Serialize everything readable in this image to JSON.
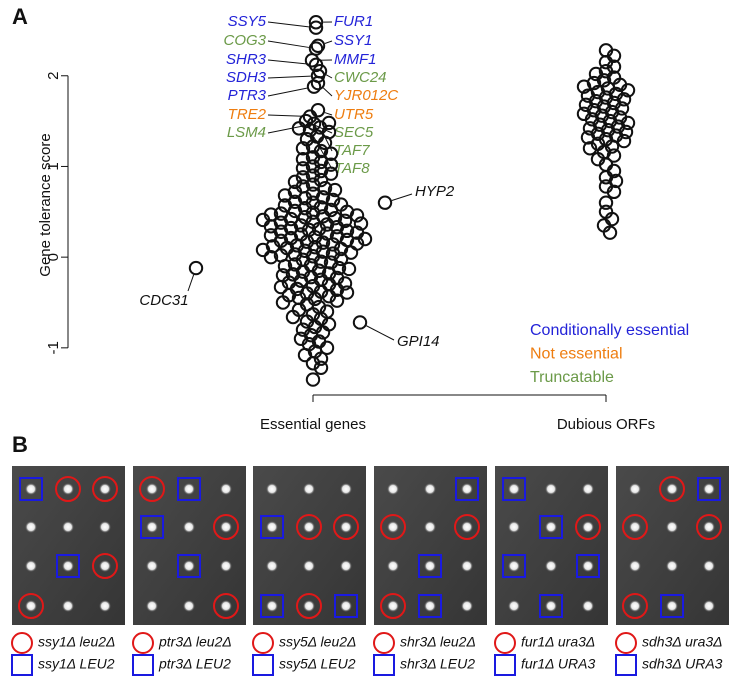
{
  "chart_data": {
    "type": "beeswarm",
    "panel_label": "A",
    "y_label": "Gene tolerance score",
    "categories": [
      "Essential genes",
      "Dubious ORFs"
    ],
    "values": [
      [
        1.48,
        1.42,
        1.38,
        1.33,
        1.3,
        1.26,
        1.22,
        1.2,
        1.17,
        1.14,
        1.1,
        1.08,
        1.05,
        1.02,
        1.0,
        0.98,
        0.95,
        0.92,
        0.9,
        0.88,
        0.85,
        0.83,
        0.8,
        0.78,
        0.76,
        0.74,
        0.72,
        0.7,
        0.68,
        0.66,
        0.65,
        0.63,
        0.61,
        0.6,
        0.58,
        0.57,
        0.55,
        0.54,
        0.52,
        0.51,
        0.5,
        0.49,
        0.48,
        0.47,
        0.46,
        0.45,
        0.44,
        0.43,
        0.42,
        0.41,
        0.4,
        0.39,
        0.38,
        0.37,
        0.36,
        0.35,
        0.34,
        0.33,
        0.32,
        0.31,
        0.3,
        0.29,
        0.28,
        0.27,
        0.26,
        0.25,
        0.24,
        0.23,
        0.22,
        0.21,
        0.2,
        0.19,
        0.18,
        0.17,
        0.16,
        0.15,
        0.14,
        0.13,
        0.12,
        0.11,
        0.1,
        0.09,
        0.08,
        0.07,
        0.06,
        0.05,
        0.04,
        0.03,
        0.02,
        0.01,
        0.0,
        -0.02,
        -0.03,
        -0.05,
        -0.06,
        -0.08,
        -0.09,
        -0.1,
        -0.12,
        -0.13,
        -0.15,
        -0.16,
        -0.18,
        -0.19,
        -0.2,
        -0.22,
        -0.23,
        -0.25,
        -0.26,
        -0.28,
        -0.29,
        -0.3,
        -0.32,
        -0.33,
        -0.35,
        -0.36,
        -0.38,
        -0.39,
        -0.4,
        -0.42,
        -0.43,
        -0.45,
        -0.46,
        -0.48,
        -0.5,
        -0.52,
        -0.55,
        -0.58,
        -0.6,
        -0.63,
        -0.66,
        -0.68,
        -0.71,
        -0.74,
        -0.77,
        -0.8,
        -0.83,
        -0.86,
        -0.9,
        -0.93,
        -0.96,
        -1.0,
        -1.04,
        -1.08,
        -1.12,
        -1.17,
        -1.22,
        -1.35
      ],
      [
        2.28,
        2.22,
        2.15,
        2.1,
        2.05,
        2.02,
        1.98,
        1.95,
        1.92,
        1.9,
        1.88,
        1.86,
        1.84,
        1.82,
        1.8,
        1.78,
        1.76,
        1.74,
        1.72,
        1.7,
        1.68,
        1.66,
        1.64,
        1.62,
        1.6,
        1.58,
        1.56,
        1.54,
        1.52,
        1.5,
        1.48,
        1.46,
        1.44,
        1.42,
        1.4,
        1.38,
        1.36,
        1.34,
        1.32,
        1.3,
        1.28,
        1.25,
        1.22,
        1.2,
        1.16,
        1.12,
        1.08,
        1.02,
        0.95,
        0.88,
        0.84,
        0.78,
        0.72,
        0.6,
        0.5,
        0.42,
        0.35,
        0.27
      ]
    ],
    "ylim": [
      -1.52,
      2.67
    ],
    "yticks": [
      -1,
      0,
      1,
      2
    ],
    "annotations": [
      {
        "label": "SSY5",
        "color": "#2323d8",
        "value": 2.53
      },
      {
        "label": "COG3",
        "color": "#6b9a48",
        "value": 2.3
      },
      {
        "label": "SHR3",
        "color": "#2323d8",
        "value": 2.12
      },
      {
        "label": "SDH3",
        "color": "#2323d8",
        "value": 2.0
      },
      {
        "label": "PTR3",
        "color": "#2323d8",
        "value": 1.88
      },
      {
        "label": "TRE2",
        "color": "#ee7d10",
        "value": 1.55
      },
      {
        "label": "LSM4",
        "color": "#6b9a48",
        "value": 1.47
      },
      {
        "label": "FUR1",
        "color": "#2323d8",
        "value": 2.59
      },
      {
        "label": "SSY1",
        "color": "#2323d8",
        "value": 2.33
      },
      {
        "label": "MMF1",
        "color": "#2323d8",
        "value": 2.17
      },
      {
        "label": "CWC24",
        "color": "#6b9a48",
        "value": 2.05
      },
      {
        "label": "YJR012C",
        "color": "#ee7d10",
        "value": 1.92
      },
      {
        "label": "UTR5",
        "color": "#ee7d10",
        "value": 1.62
      },
      {
        "label": "SEC5",
        "color": "#6b9a48",
        "value": 1.5
      },
      {
        "label": "TAF7",
        "color": "#6b9a48",
        "value": 1.43
      },
      {
        "label": "TAF8",
        "color": "#6b9a48",
        "value": 1.4
      },
      {
        "label": "HYP2",
        "color": "#111111",
        "value": 0.6
      },
      {
        "label": "CDC31",
        "color": "#111111",
        "value": -0.12
      },
      {
        "label": "GPI14",
        "color": "#111111",
        "value": -0.72
      }
    ],
    "legend": [
      {
        "name": "Conditionally essential",
        "color": "#2323d8"
      },
      {
        "name": "Not essential",
        "color": "#ee7d10"
      },
      {
        "name": "Truncatable",
        "color": "#6b9a48"
      }
    ]
  },
  "panel_b": {
    "panel_label": "B",
    "plates": [
      {
        "circle_label": "ssy1Δ leu2Δ",
        "square_label": "ssy1Δ LEU2"
      },
      {
        "circle_label": "ptr3Δ leu2Δ",
        "square_label": "ptr3Δ LEU2"
      },
      {
        "circle_label": "ssy5Δ leu2Δ",
        "square_label": "ssy5Δ LEU2"
      },
      {
        "circle_label": "shr3Δ leu2Δ",
        "square_label": "shr3Δ LEU2"
      },
      {
        "circle_label": "fur1Δ ura3Δ",
        "square_label": "fur1Δ URA3"
      },
      {
        "circle_label": "sdh3Δ ura3Δ",
        "square_label": "sdh3Δ URA3"
      }
    ]
  }
}
